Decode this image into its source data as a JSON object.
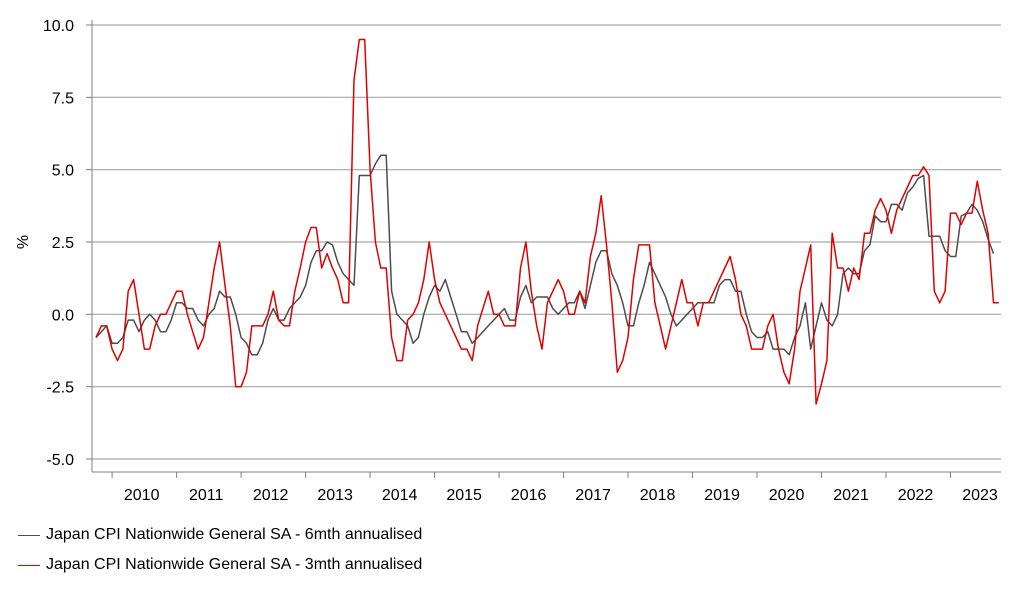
{
  "chart_data": {
    "type": "line",
    "ylabel": "%",
    "ylim": [
      -5.0,
      10.0
    ],
    "yticks": [
      -5.0,
      -2.5,
      0.0,
      2.5,
      5.0,
      7.5,
      10.0
    ],
    "ytick_labels": [
      "-5.0",
      "-2.5",
      "0.0",
      "2.5",
      "5.0",
      "7.5",
      "10.0"
    ],
    "year_labels": [
      "2010",
      "2011",
      "2012",
      "2013",
      "2014",
      "2015",
      "2016",
      "2017",
      "2018",
      "2019",
      "2020",
      "2021",
      "2022",
      "2023"
    ],
    "grid": "horizontal",
    "legend_placement": "bottom-left",
    "x_start": "2009-10",
    "x_end": "2023-12",
    "series": [
      {
        "name": "Japan CPI Nationwide General SA - 6mth annualised",
        "color": "#4d4d4d",
        "values": [
          -0.8,
          -0.6,
          -0.4,
          -1.0,
          -1.0,
          -0.8,
          -0.2,
          -0.2,
          -0.6,
          -0.2,
          0.0,
          -0.2,
          -0.6,
          -0.6,
          -0.2,
          0.4,
          0.4,
          0.2,
          0.2,
          -0.2,
          -0.4,
          0.0,
          0.2,
          0.8,
          0.6,
          0.6,
          0.0,
          -0.8,
          -1.0,
          -1.4,
          -1.4,
          -1.0,
          -0.2,
          0.2,
          -0.2,
          -0.2,
          0.2,
          0.4,
          0.6,
          1.0,
          1.8,
          2.2,
          2.2,
          2.5,
          2.4,
          1.8,
          1.4,
          1.2,
          1.0,
          4.8,
          4.8,
          4.8,
          5.2,
          5.5,
          5.5,
          0.8,
          0.0,
          -0.2,
          -0.4,
          -1.0,
          -0.8,
          0.0,
          0.6,
          1.0,
          0.8,
          1.2,
          0.6,
          0.0,
          -0.6,
          -0.6,
          -1.0,
          -0.8,
          -0.6,
          -0.4,
          -0.2,
          0.0,
          0.2,
          -0.2,
          -0.2,
          0.6,
          1.0,
          0.4,
          0.6,
          0.6,
          0.6,
          0.2,
          0.0,
          0.2,
          0.4,
          0.4,
          0.8,
          0.2,
          1.0,
          1.8,
          2.2,
          2.2,
          1.4,
          1.0,
          0.4,
          -0.4,
          -0.4,
          0.4,
          1.0,
          1.8,
          1.4,
          1.0,
          0.6,
          0.0,
          -0.4,
          -0.2,
          0.0,
          0.2,
          0.4,
          0.4,
          0.4,
          0.4,
          1.0,
          1.2,
          1.2,
          0.8,
          0.8,
          0.0,
          -0.6,
          -0.8,
          -0.8,
          -0.6,
          -1.2,
          -1.2,
          -1.2,
          -1.4,
          -0.8,
          -0.4,
          0.4,
          -1.2,
          -0.4,
          0.4,
          -0.2,
          -0.4,
          0.0,
          1.4,
          1.6,
          1.4,
          1.4,
          2.2,
          2.4,
          3.4,
          3.2,
          3.2,
          3.8,
          3.8,
          3.6,
          4.2,
          4.4,
          4.7,
          4.8,
          2.7,
          2.7,
          2.7,
          2.2,
          2.0,
          2.0,
          3.4,
          3.5,
          3.8,
          3.6,
          3.2,
          2.6,
          2.1
        ]
      },
      {
        "name": "Japan CPI Nationwide General SA - 3mth annualised",
        "color": "#e00000",
        "values": [
          -0.8,
          -0.4,
          -0.4,
          -1.2,
          -1.6,
          -1.2,
          0.8,
          1.2,
          0.0,
          -1.2,
          -1.2,
          -0.4,
          0.0,
          0.0,
          0.4,
          0.8,
          0.8,
          0.0,
          -0.6,
          -1.2,
          -0.8,
          0.4,
          1.6,
          2.5,
          1.0,
          -0.4,
          -2.5,
          -2.5,
          -2.0,
          -0.4,
          -0.4,
          -0.4,
          0.0,
          0.8,
          -0.2,
          -0.4,
          -0.4,
          0.8,
          1.6,
          2.5,
          3.0,
          3.0,
          1.6,
          2.1,
          1.6,
          1.2,
          0.4,
          0.4,
          8.1,
          9.5,
          9.5,
          5.0,
          2.5,
          1.6,
          1.6,
          -0.8,
          -1.6,
          -1.6,
          -0.2,
          0.0,
          0.4,
          1.2,
          2.5,
          1.2,
          0.4,
          0.0,
          -0.4,
          -0.8,
          -1.2,
          -1.2,
          -1.6,
          -0.4,
          0.2,
          0.8,
          0.0,
          0.0,
          -0.4,
          -0.4,
          -0.4,
          1.6,
          2.5,
          0.8,
          -0.4,
          -1.2,
          0.4,
          0.8,
          1.2,
          0.8,
          0.0,
          0.0,
          0.8,
          0.4,
          2.0,
          2.8,
          4.1,
          2.4,
          0.4,
          -2.0,
          -1.6,
          -0.8,
          1.2,
          2.4,
          2.4,
          2.4,
          0.4,
          -0.4,
          -1.2,
          -0.4,
          0.4,
          1.2,
          0.4,
          0.4,
          -0.4,
          0.4,
          0.4,
          0.8,
          1.2,
          1.6,
          2.0,
          1.2,
          0.0,
          -0.4,
          -1.2,
          -1.2,
          -1.2,
          -0.4,
          0.0,
          -1.2,
          -2.0,
          -2.4,
          -1.2,
          0.8,
          1.6,
          2.4,
          -3.1,
          -2.4,
          -1.6,
          2.8,
          1.6,
          1.6,
          0.8,
          1.6,
          1.2,
          2.8,
          2.8,
          3.6,
          4.0,
          3.6,
          2.8,
          3.6,
          4.0,
          4.4,
          4.8,
          4.8,
          5.1,
          4.8,
          0.8,
          0.4,
          0.8,
          3.5,
          3.5,
          3.1,
          3.5,
          3.5,
          4.6,
          3.6,
          2.8,
          0.4,
          0.4
        ]
      }
    ]
  }
}
